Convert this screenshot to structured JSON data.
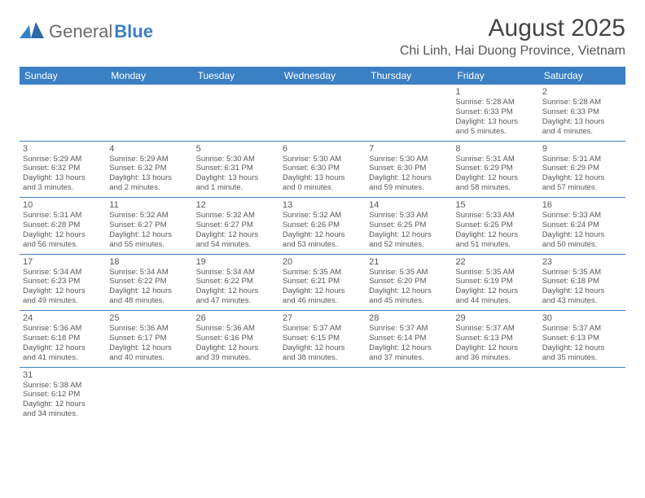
{
  "brand": {
    "part1": "General",
    "part2": "Blue"
  },
  "title": "August 2025",
  "location": "Chi Linh, Hai Duong Province, Vietnam",
  "dayNames": [
    "Sunday",
    "Monday",
    "Tuesday",
    "Wednesday",
    "Thursday",
    "Friday",
    "Saturday"
  ],
  "colors": {
    "headerBg": "#3b7fc4",
    "headerText": "#ffffff",
    "bodyText": "#595959",
    "ruleColor": "#3b7fc4"
  },
  "weeks": [
    [
      null,
      null,
      null,
      null,
      null,
      {
        "n": "1",
        "sr": "Sunrise: 5:28 AM",
        "ss": "Sunset: 6:33 PM",
        "d1": "Daylight: 13 hours",
        "d2": "and 5 minutes."
      },
      {
        "n": "2",
        "sr": "Sunrise: 5:28 AM",
        "ss": "Sunset: 6:33 PM",
        "d1": "Daylight: 13 hours",
        "d2": "and 4 minutes."
      }
    ],
    [
      {
        "n": "3",
        "sr": "Sunrise: 5:29 AM",
        "ss": "Sunset: 6:32 PM",
        "d1": "Daylight: 13 hours",
        "d2": "and 3 minutes."
      },
      {
        "n": "4",
        "sr": "Sunrise: 5:29 AM",
        "ss": "Sunset: 6:32 PM",
        "d1": "Daylight: 13 hours",
        "d2": "and 2 minutes."
      },
      {
        "n": "5",
        "sr": "Sunrise: 5:30 AM",
        "ss": "Sunset: 6:31 PM",
        "d1": "Daylight: 13 hours",
        "d2": "and 1 minute."
      },
      {
        "n": "6",
        "sr": "Sunrise: 5:30 AM",
        "ss": "Sunset: 6:30 PM",
        "d1": "Daylight: 13 hours",
        "d2": "and 0 minutes."
      },
      {
        "n": "7",
        "sr": "Sunrise: 5:30 AM",
        "ss": "Sunset: 6:30 PM",
        "d1": "Daylight: 12 hours",
        "d2": "and 59 minutes."
      },
      {
        "n": "8",
        "sr": "Sunrise: 5:31 AM",
        "ss": "Sunset: 6:29 PM",
        "d1": "Daylight: 12 hours",
        "d2": "and 58 minutes."
      },
      {
        "n": "9",
        "sr": "Sunrise: 5:31 AM",
        "ss": "Sunset: 6:29 PM",
        "d1": "Daylight: 12 hours",
        "d2": "and 57 minutes."
      }
    ],
    [
      {
        "n": "10",
        "sr": "Sunrise: 5:31 AM",
        "ss": "Sunset: 6:28 PM",
        "d1": "Daylight: 12 hours",
        "d2": "and 56 minutes."
      },
      {
        "n": "11",
        "sr": "Sunrise: 5:32 AM",
        "ss": "Sunset: 6:27 PM",
        "d1": "Daylight: 12 hours",
        "d2": "and 55 minutes."
      },
      {
        "n": "12",
        "sr": "Sunrise: 5:32 AM",
        "ss": "Sunset: 6:27 PM",
        "d1": "Daylight: 12 hours",
        "d2": "and 54 minutes."
      },
      {
        "n": "13",
        "sr": "Sunrise: 5:32 AM",
        "ss": "Sunset: 6:26 PM",
        "d1": "Daylight: 12 hours",
        "d2": "and 53 minutes."
      },
      {
        "n": "14",
        "sr": "Sunrise: 5:33 AM",
        "ss": "Sunset: 6:25 PM",
        "d1": "Daylight: 12 hours",
        "d2": "and 52 minutes."
      },
      {
        "n": "15",
        "sr": "Sunrise: 5:33 AM",
        "ss": "Sunset: 6:25 PM",
        "d1": "Daylight: 12 hours",
        "d2": "and 51 minutes."
      },
      {
        "n": "16",
        "sr": "Sunrise: 5:33 AM",
        "ss": "Sunset: 6:24 PM",
        "d1": "Daylight: 12 hours",
        "d2": "and 50 minutes."
      }
    ],
    [
      {
        "n": "17",
        "sr": "Sunrise: 5:34 AM",
        "ss": "Sunset: 6:23 PM",
        "d1": "Daylight: 12 hours",
        "d2": "and 49 minutes."
      },
      {
        "n": "18",
        "sr": "Sunrise: 5:34 AM",
        "ss": "Sunset: 6:22 PM",
        "d1": "Daylight: 12 hours",
        "d2": "and 48 minutes."
      },
      {
        "n": "19",
        "sr": "Sunrise: 5:34 AM",
        "ss": "Sunset: 6:22 PM",
        "d1": "Daylight: 12 hours",
        "d2": "and 47 minutes."
      },
      {
        "n": "20",
        "sr": "Sunrise: 5:35 AM",
        "ss": "Sunset: 6:21 PM",
        "d1": "Daylight: 12 hours",
        "d2": "and 46 minutes."
      },
      {
        "n": "21",
        "sr": "Sunrise: 5:35 AM",
        "ss": "Sunset: 6:20 PM",
        "d1": "Daylight: 12 hours",
        "d2": "and 45 minutes."
      },
      {
        "n": "22",
        "sr": "Sunrise: 5:35 AM",
        "ss": "Sunset: 6:19 PM",
        "d1": "Daylight: 12 hours",
        "d2": "and 44 minutes."
      },
      {
        "n": "23",
        "sr": "Sunrise: 5:35 AM",
        "ss": "Sunset: 6:18 PM",
        "d1": "Daylight: 12 hours",
        "d2": "and 43 minutes."
      }
    ],
    [
      {
        "n": "24",
        "sr": "Sunrise: 5:36 AM",
        "ss": "Sunset: 6:18 PM",
        "d1": "Daylight: 12 hours",
        "d2": "and 41 minutes."
      },
      {
        "n": "25",
        "sr": "Sunrise: 5:36 AM",
        "ss": "Sunset: 6:17 PM",
        "d1": "Daylight: 12 hours",
        "d2": "and 40 minutes."
      },
      {
        "n": "26",
        "sr": "Sunrise: 5:36 AM",
        "ss": "Sunset: 6:16 PM",
        "d1": "Daylight: 12 hours",
        "d2": "and 39 minutes."
      },
      {
        "n": "27",
        "sr": "Sunrise: 5:37 AM",
        "ss": "Sunset: 6:15 PM",
        "d1": "Daylight: 12 hours",
        "d2": "and 38 minutes."
      },
      {
        "n": "28",
        "sr": "Sunrise: 5:37 AM",
        "ss": "Sunset: 6:14 PM",
        "d1": "Daylight: 12 hours",
        "d2": "and 37 minutes."
      },
      {
        "n": "29",
        "sr": "Sunrise: 5:37 AM",
        "ss": "Sunset: 6:13 PM",
        "d1": "Daylight: 12 hours",
        "d2": "and 36 minutes."
      },
      {
        "n": "30",
        "sr": "Sunrise: 5:37 AM",
        "ss": "Sunset: 6:13 PM",
        "d1": "Daylight: 12 hours",
        "d2": "and 35 minutes."
      }
    ],
    [
      {
        "n": "31",
        "sr": "Sunrise: 5:38 AM",
        "ss": "Sunset: 6:12 PM",
        "d1": "Daylight: 12 hours",
        "d2": "and 34 minutes."
      },
      null,
      null,
      null,
      null,
      null,
      null
    ]
  ]
}
